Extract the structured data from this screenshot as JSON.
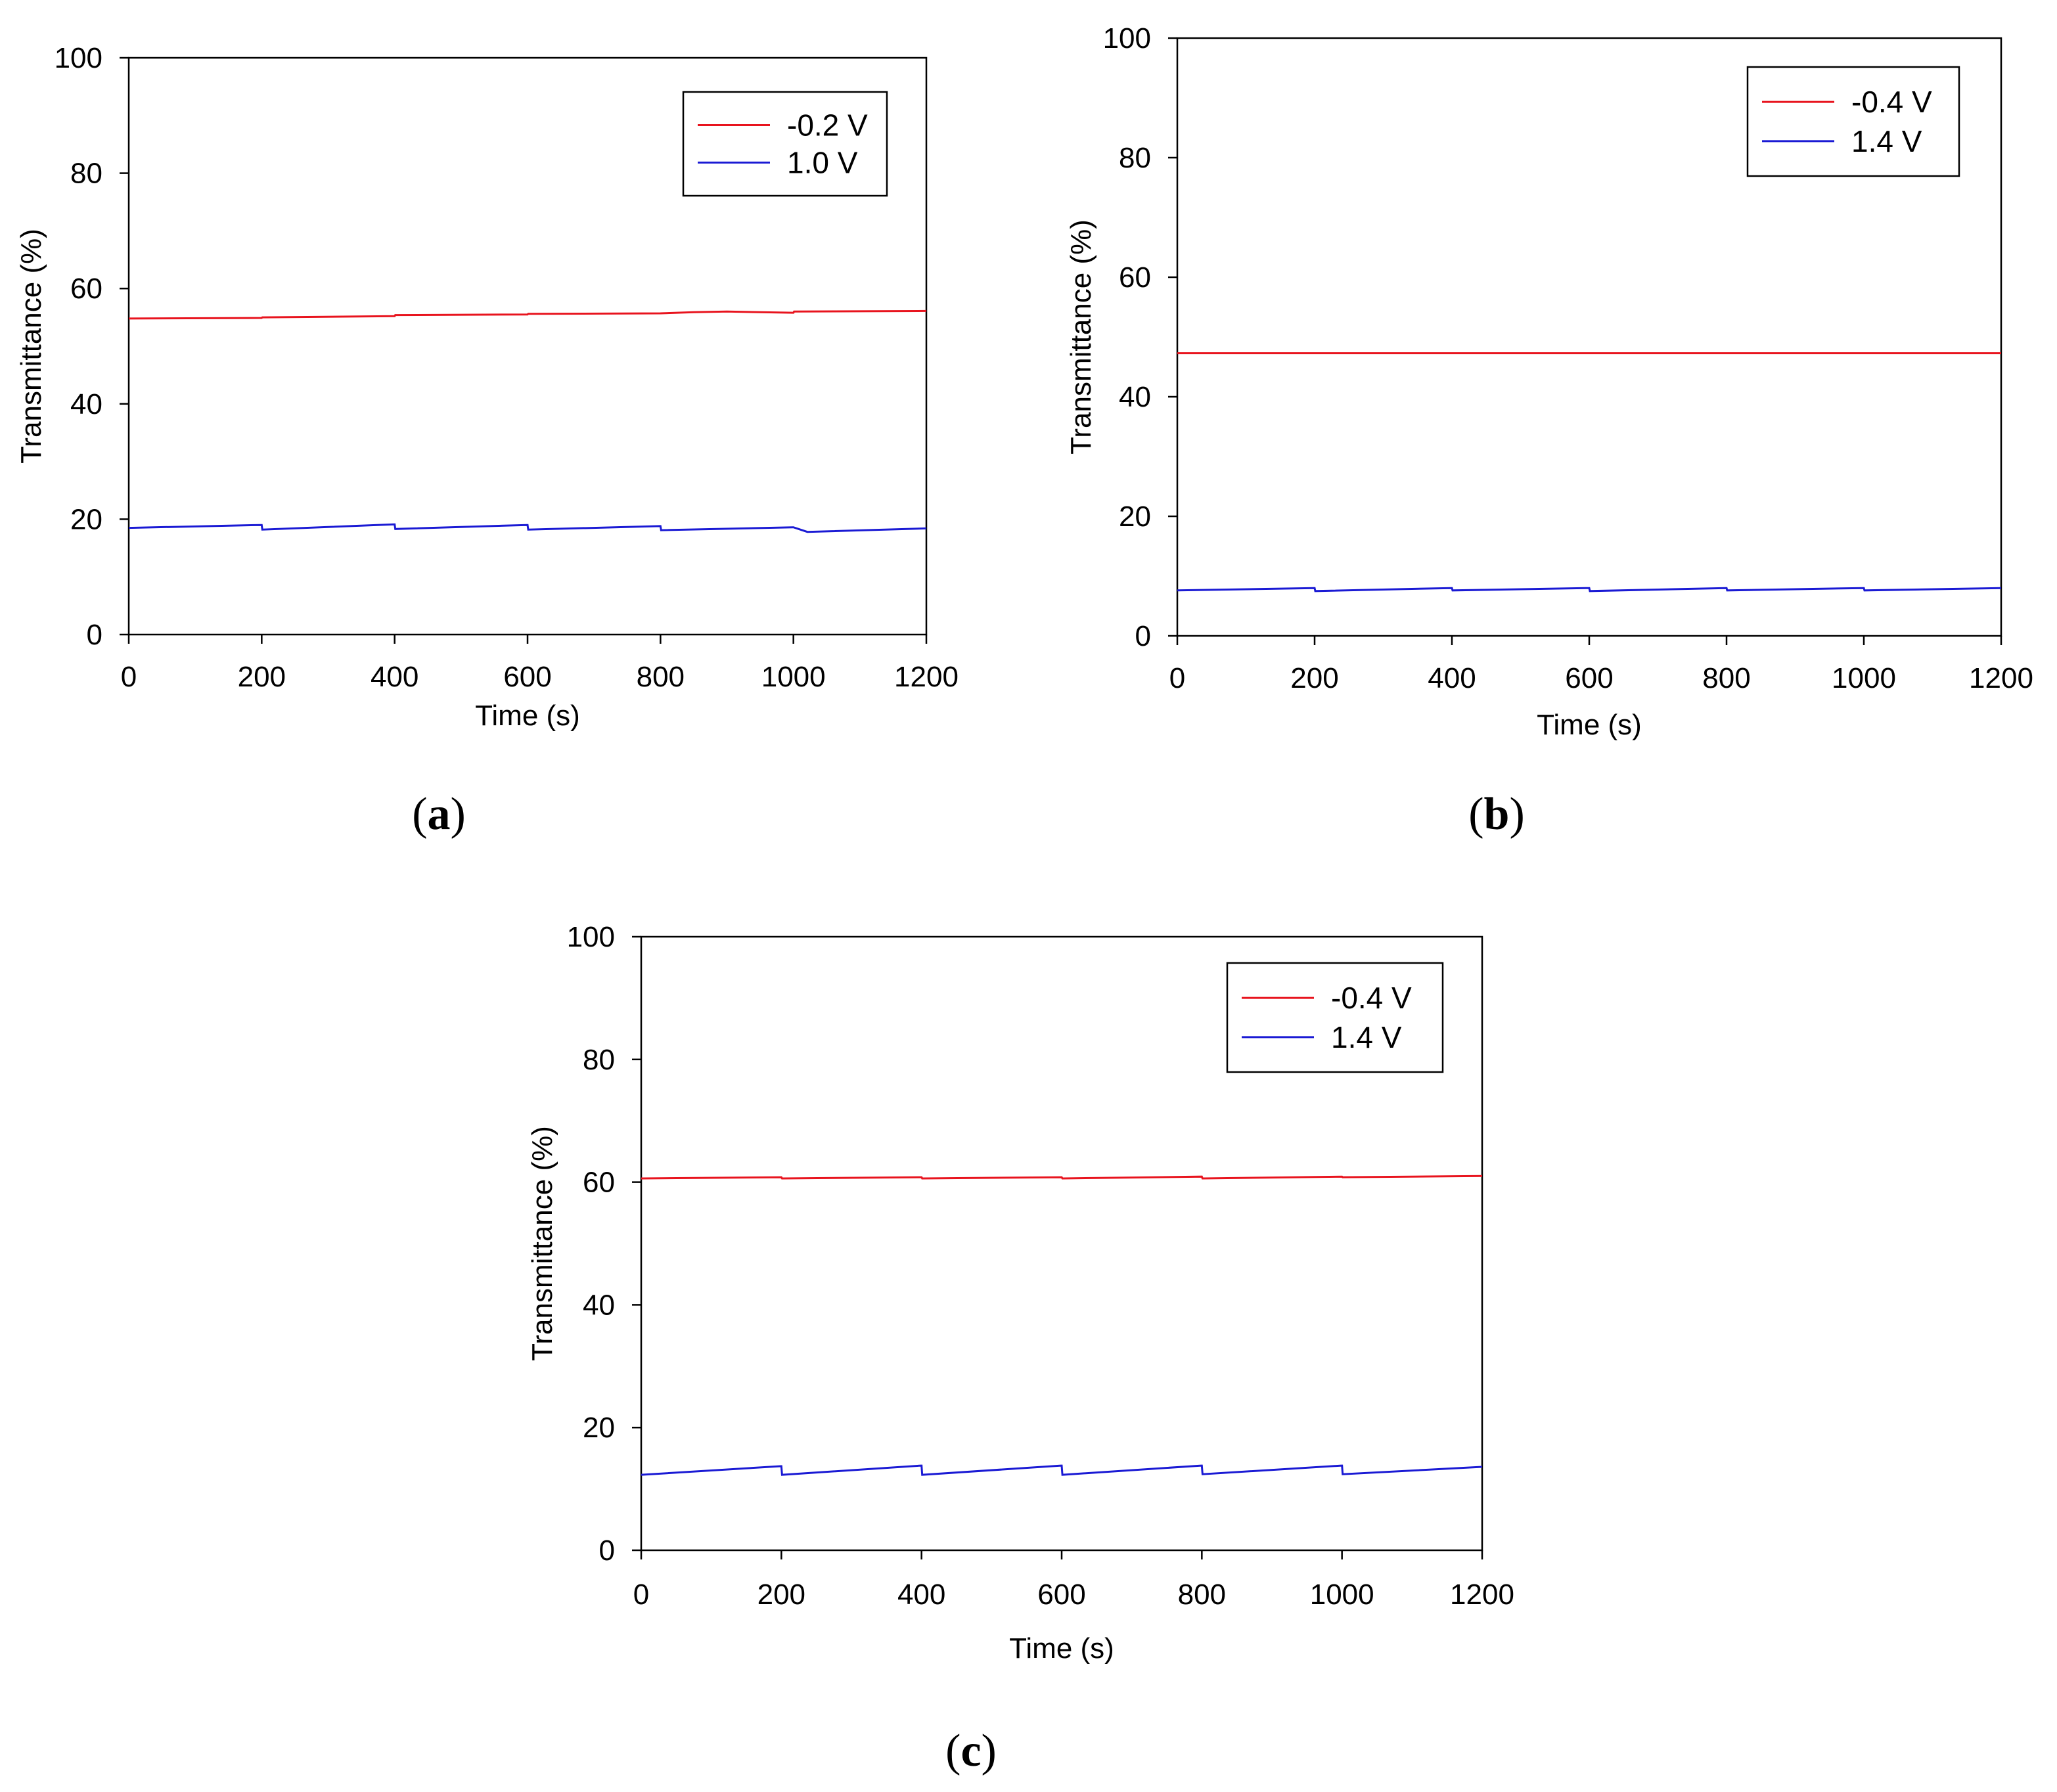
{
  "colors": {
    "red": "#e8141e",
    "blue": "#1a1ad4",
    "axis": "#000000"
  },
  "chart_data": [
    {
      "panel": "a",
      "type": "line",
      "xlabel": "Time (s)",
      "ylabel": "Transmittance (%)",
      "xlim": [
        0,
        1200
      ],
      "ylim": [
        0,
        100
      ],
      "xticks": [
        "0",
        "200",
        "400",
        "600",
        "800",
        "1000",
        "1200"
      ],
      "yticks": [
        "0",
        "20",
        "40",
        "60",
        "80",
        "100"
      ],
      "legend_position": "top-right",
      "label_letter": "a",
      "series": [
        {
          "name": "-0.2 V",
          "color": "#e8141e",
          "x": [
            0,
            200,
            201,
            400,
            401,
            600,
            601,
            800,
            850,
            900,
            1000,
            1001,
            1200
          ],
          "y": [
            54.8,
            54.9,
            55.0,
            55.2,
            55.4,
            55.5,
            55.6,
            55.7,
            55.9,
            56.0,
            55.8,
            56.0,
            56.1
          ]
        },
        {
          "name": "1.0 V",
          "color": "#1a1ad4",
          "x": [
            0,
            199,
            200,
            201,
            399,
            400,
            401,
            599,
            600,
            601,
            799,
            800,
            801,
            999,
            1000,
            1021,
            1200
          ],
          "y": [
            18.5,
            19.0,
            19.0,
            18.2,
            19.1,
            19.1,
            18.3,
            19.0,
            19.0,
            18.2,
            18.8,
            18.8,
            18.1,
            18.6,
            18.6,
            17.8,
            18.4
          ]
        }
      ]
    },
    {
      "panel": "b",
      "type": "line",
      "xlabel": "Time (s)",
      "ylabel": "Transmittance (%)",
      "xlim": [
        0,
        1200
      ],
      "ylim": [
        0,
        100
      ],
      "xticks": [
        "0",
        "200",
        "400",
        "600",
        "800",
        "1000",
        "1200"
      ],
      "yticks": [
        "0",
        "20",
        "40",
        "60",
        "80",
        "100"
      ],
      "legend_position": "top-right",
      "label_letter": "b",
      "series": [
        {
          "name": "-0.4 V",
          "color": "#e8141e",
          "x": [
            0,
            1200
          ],
          "y": [
            47.3,
            47.3
          ]
        },
        {
          "name": "1.4 V",
          "color": "#1a1ad4",
          "x": [
            0,
            199,
            200,
            201,
            399,
            400,
            401,
            599,
            600,
            601,
            799,
            800,
            801,
            999,
            1000,
            1001,
            1200
          ],
          "y": [
            7.6,
            8.0,
            8.0,
            7.5,
            8.0,
            8.0,
            7.6,
            8.0,
            8.0,
            7.5,
            8.0,
            8.0,
            7.6,
            8.0,
            8.0,
            7.6,
            8.0
          ]
        }
      ]
    },
    {
      "panel": "c",
      "type": "line",
      "xlabel": "Time (s)",
      "ylabel": "Transmittance (%)",
      "xlim": [
        0,
        1200
      ],
      "ylim": [
        0,
        100
      ],
      "xticks": [
        "0",
        "200",
        "400",
        "600",
        "800",
        "1000",
        "1200"
      ],
      "yticks": [
        "0",
        "20",
        "40",
        "60",
        "80",
        "100"
      ],
      "legend_position": "top-right",
      "label_letter": "c",
      "series": [
        {
          "name": "-0.4 V",
          "color": "#e8141e",
          "x": [
            0,
            200,
            201,
            400,
            401,
            600,
            601,
            800,
            801,
            1000,
            1001,
            1200
          ],
          "y": [
            60.6,
            60.8,
            60.6,
            60.8,
            60.6,
            60.8,
            60.6,
            60.9,
            60.6,
            60.9,
            60.8,
            61.0
          ]
        },
        {
          "name": "1.4 V",
          "color": "#1a1ad4",
          "x": [
            0,
            199,
            200,
            201,
            399,
            400,
            401,
            599,
            600,
            601,
            799,
            800,
            801,
            999,
            1000,
            1001,
            1200
          ],
          "y": [
            12.3,
            13.7,
            13.7,
            12.3,
            13.8,
            13.8,
            12.3,
            13.8,
            13.8,
            12.3,
            13.8,
            13.8,
            12.4,
            13.8,
            13.8,
            12.4,
            13.6
          ]
        }
      ]
    }
  ]
}
